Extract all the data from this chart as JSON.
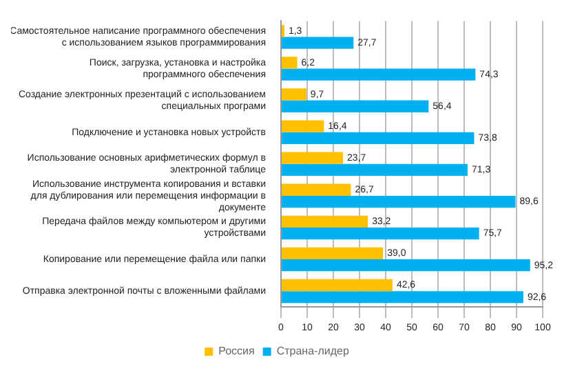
{
  "chart_data": {
    "type": "bar",
    "orientation": "horizontal",
    "categories": [
      "Самостоятельное написание программного обеспечения с использованием языков программирования",
      "Поиск, загрузка, установка и настройка программного обеспечения",
      "Создание электронных презентаций с использованием специальных програми",
      "Подключение и установка новых устройств",
      "Использование основных арифметических формул в электронной таблице",
      "Использование инструмента копирования и вставки для дублирования или перемещения информации в документе",
      "Передача файлов между компьютером и другими устройствами",
      "Копирование или перемещение файла или папки",
      "Отправка электронной почты с вложенными файлами"
    ],
    "series": [
      {
        "name": "Россия",
        "color": "#ffc000",
        "values": [
          1.3,
          6.2,
          9.7,
          16.4,
          23.7,
          26.7,
          33.2,
          39.0,
          42.6
        ],
        "value_labels": [
          "1,3",
          "6,2",
          "9,7",
          "16,4",
          "23,7",
          "26,7",
          "33,2",
          "39,0",
          "42,6"
        ]
      },
      {
        "name": "Страна-лидер",
        "color": "#00b0f0",
        "values": [
          27.7,
          74.3,
          56.4,
          73.8,
          71.3,
          89.6,
          75.7,
          95.2,
          92.6
        ],
        "value_labels": [
          "27,7",
          "74,3",
          "56,4",
          "73,8",
          "71,3",
          "89,6",
          "75,7",
          "95,2",
          "92,6"
        ]
      }
    ],
    "xlim": [
      0,
      100
    ],
    "xticks": [
      0,
      10,
      20,
      30,
      40,
      50,
      60,
      70,
      80,
      90,
      100
    ],
    "grid": "x",
    "legend": "bottom"
  }
}
